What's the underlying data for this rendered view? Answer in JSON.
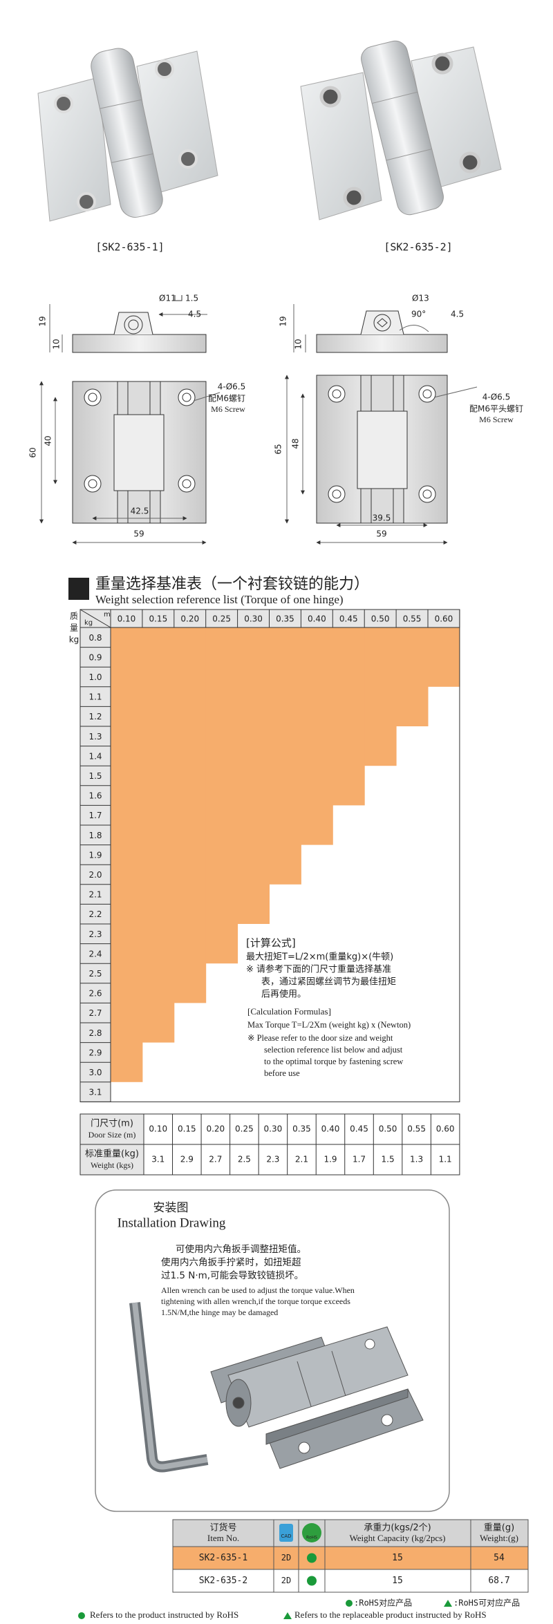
{
  "products": [
    {
      "label": "[SK2-635-1]"
    },
    {
      "label": "[SK2-635-2]"
    }
  ],
  "drawings": [
    {
      "bore": "Ø11",
      "counterbore": "1.5",
      "offset": "4.5",
      "height": "19",
      "base": "10",
      "length": "60",
      "hole_pitch_v": "40",
      "hole_pitch_h": "42.5",
      "width": "59",
      "holes": "4-Ø6.5",
      "screw_cn": "配M6螺钉",
      "screw_en": "M6 Screw"
    },
    {
      "bore": "Ø13",
      "angle": "90°",
      "offset": "4.5",
      "height": "19",
      "base": "10",
      "length": "65",
      "hole_pitch_v": "48",
      "hole_pitch_h": "39.5",
      "width": "59",
      "holes": "4-Ø6.5",
      "screw_cn": "配M6平头螺钉",
      "screw_en": "M6 Screw"
    }
  ],
  "weight_table": {
    "title_cn": "重量选择基准表（一个衬套铰链的能力）",
    "title_en": "Weight selection reference list (Torque of one hinge)",
    "side_label": [
      "质",
      "量",
      "kg"
    ],
    "corner_col": "m",
    "corner_row": "kg",
    "torques": [
      "0.10",
      "0.15",
      "0.20",
      "0.25",
      "0.30",
      "0.35",
      "0.40",
      "0.45",
      "0.50",
      "0.55",
      "0.60"
    ],
    "weights": [
      "0.8",
      "0.9",
      "1.0",
      "1.1",
      "1.2",
      "1.3",
      "1.4",
      "1.5",
      "1.6",
      "1.7",
      "1.8",
      "1.9",
      "2.0",
      "2.1",
      "2.2",
      "2.3",
      "2.4",
      "2.5",
      "2.6",
      "2.7",
      "2.8",
      "2.9",
      "3.0",
      "3.1"
    ],
    "formula_cn": [
      "[计算公式]",
      "最大扭矩T=L/2×m(重量kg)×(牛顿)",
      "※ 请参考下面的门尺寸重量选择基准",
      "表，通过紧固螺丝调节为最佳扭矩",
      "后再使用。"
    ],
    "formula_en": [
      "[Calculation Formulas]",
      "Max Torque T=L/2Xm (weight kg) x (Newton)",
      "※ Please refer to the door size and weight",
      "selection reference list below and adjust",
      "to the optimal torque by fastening screw",
      "before use"
    ]
  },
  "door_table": {
    "size_label_cn": "门尺寸(m)",
    "size_label_en": "Door Size (m)",
    "weight_label_cn": "标准重量(kg)",
    "weight_label_en": "Weight (kgs)",
    "sizes": [
      "0.10",
      "0.15",
      "0.20",
      "0.25",
      "0.30",
      "0.35",
      "0.40",
      "0.45",
      "0.50",
      "0.55",
      "0.60"
    ],
    "weights": [
      "3.1",
      "2.9",
      "2.7",
      "2.5",
      "2.3",
      "2.1",
      "1.9",
      "1.7",
      "1.5",
      "1.3",
      "1.1"
    ]
  },
  "installation": {
    "title_cn": "安装图",
    "title_en": "Installation Drawing",
    "text_cn": [
      "可使用内六角扳手调整扭矩值。",
      "使用内六角扳手拧紧时，如扭矩超",
      "过1.5 N·m,可能会导致铰链损坏。"
    ],
    "text_en": [
      "Allen wrench can be used to adjust the torque value.When",
      "tightening with allen wrench,if the torque torque exceeds",
      "1.5N/M,the hinge may be damaged"
    ]
  },
  "order_table": {
    "header": {
      "item_cn": "订货号",
      "item_en": "Item No.",
      "cad": "CAD",
      "rohs": "RoHS",
      "capacity_cn": "承重力(kgs/2个)",
      "capacity_en": "Weight Capacity (kg/2pcs)",
      "weight_cn": "重量(g)",
      "weight_en": "Weight:(g)"
    },
    "rows": [
      [
        "SK2-635-1",
        "2D",
        "15",
        "54"
      ],
      [
        "SK2-635-2",
        "2D",
        "15",
        "68.7"
      ]
    ],
    "legend": [
      ":RoHS对应产品",
      ":RoHS可对应产品"
    ]
  },
  "footer": [
    "Refers to the product instructed by RoHS",
    "Refers to the replaceable product instructed by RoHS"
  ]
}
